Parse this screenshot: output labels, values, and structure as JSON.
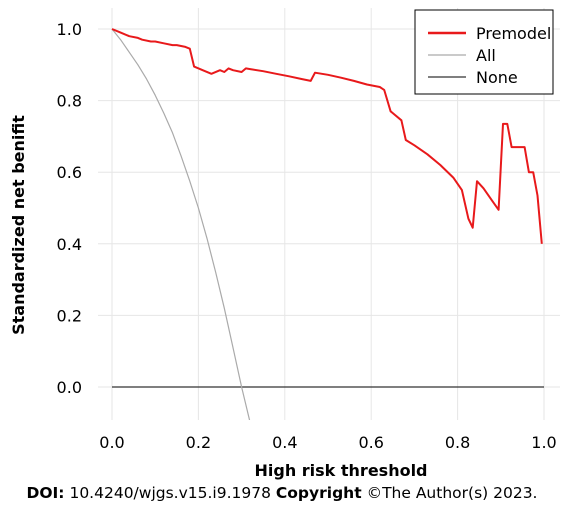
{
  "chart_data": {
    "type": "line",
    "xlabel": "High risk threshold",
    "ylabel": "Standardized net benifit",
    "xlim": [
      0,
      1
    ],
    "ylim": [
      -0.09,
      1.03
    ],
    "xticks": [
      "0.0",
      "0.2",
      "0.4",
      "0.6",
      "0.8",
      "1.0"
    ],
    "yticks": [
      "0.0",
      "0.2",
      "0.4",
      "0.6",
      "0.8",
      "1.0"
    ],
    "grid": true,
    "legend_position": "top-right",
    "series": [
      {
        "name": "Premodel",
        "color": "#e8191b",
        "x": [
          0.0,
          0.02,
          0.04,
          0.06,
          0.07,
          0.09,
          0.1,
          0.12,
          0.14,
          0.15,
          0.17,
          0.18,
          0.19,
          0.21,
          0.23,
          0.25,
          0.26,
          0.27,
          0.28,
          0.3,
          0.31,
          0.32,
          0.35,
          0.38,
          0.41,
          0.44,
          0.46,
          0.47,
          0.5,
          0.53,
          0.56,
          0.59,
          0.62,
          0.63,
          0.645,
          0.65,
          0.67,
          0.68,
          0.7,
          0.73,
          0.76,
          0.79,
          0.81,
          0.825,
          0.835,
          0.845,
          0.86,
          0.88,
          0.895,
          0.905,
          0.915,
          0.925,
          0.94,
          0.955,
          0.965,
          0.975,
          0.985,
          0.995
        ],
        "y": [
          1.0,
          0.99,
          0.98,
          0.975,
          0.97,
          0.965,
          0.965,
          0.96,
          0.955,
          0.955,
          0.95,
          0.945,
          0.895,
          0.885,
          0.875,
          0.885,
          0.88,
          0.89,
          0.885,
          0.88,
          0.89,
          0.888,
          0.882,
          0.875,
          0.868,
          0.86,
          0.855,
          0.878,
          0.872,
          0.864,
          0.855,
          0.845,
          0.838,
          0.83,
          0.77,
          0.765,
          0.745,
          0.69,
          0.675,
          0.65,
          0.62,
          0.585,
          0.55,
          0.47,
          0.445,
          0.575,
          0.555,
          0.52,
          0.495,
          0.735,
          0.735,
          0.67,
          0.67,
          0.67,
          0.6,
          0.6,
          0.535,
          0.4
        ]
      },
      {
        "name": "All",
        "color": "#aaaaaa",
        "x": [
          0.0,
          0.02,
          0.04,
          0.06,
          0.08,
          0.1,
          0.12,
          0.14,
          0.16,
          0.18,
          0.2,
          0.22,
          0.24,
          0.26,
          0.28,
          0.3,
          0.32
        ],
        "y": [
          1.0,
          0.97,
          0.935,
          0.9,
          0.86,
          0.815,
          0.765,
          0.71,
          0.645,
          0.575,
          0.5,
          0.415,
          0.32,
          0.22,
          0.11,
          0.0,
          -0.1
        ]
      },
      {
        "name": "None",
        "color": "#333333",
        "x": [
          0.0,
          1.0
        ],
        "y": [
          0.0,
          0.0
        ]
      }
    ]
  },
  "footer": {
    "doi_label": "DOI:",
    "doi_value": "10.4240/wjgs.v15.i9.1978",
    "copyright_label": "Copyright",
    "copyright_value": "©The Author(s) 2023."
  }
}
